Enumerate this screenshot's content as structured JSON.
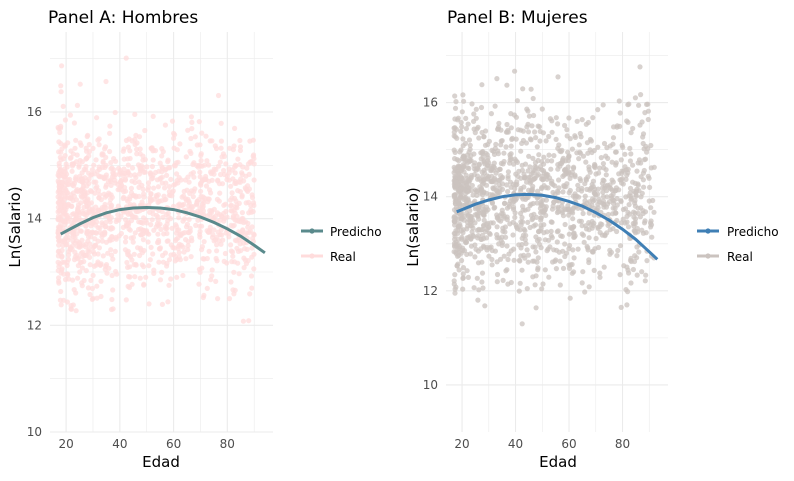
{
  "colors": {
    "grid": "#ebebeb",
    "axis_text": "#4d4d4d",
    "title_text": "#000000"
  },
  "chart_data": [
    {
      "type": "scatter",
      "title": "Panel A: Hombres",
      "xlabel": "Edad",
      "ylabel": "Ln(Salario)",
      "xlim": [
        14,
        97
      ],
      "ylim": [
        10,
        17.5
      ],
      "xticks": [
        20,
        40,
        60,
        80
      ],
      "yticks": [
        10,
        12,
        14,
        16
      ],
      "grid": true,
      "legend_position": "right",
      "series": [
        {
          "name": "Predicho",
          "kind": "line",
          "color": "#5a8a8c",
          "x": [
            18,
            25,
            30,
            35,
            40,
            45,
            50,
            55,
            60,
            65,
            70,
            75,
            80,
            85,
            90,
            94
          ],
          "y": [
            13.71,
            13.9,
            14.02,
            14.11,
            14.17,
            14.2,
            14.21,
            14.2,
            14.17,
            14.11,
            14.03,
            13.93,
            13.81,
            13.67,
            13.5,
            13.36
          ]
        },
        {
          "name": "Real",
          "kind": "points",
          "color": "#ffdcdc",
          "x_range": [
            17,
            90
          ],
          "center_y": 14.2,
          "spread": 0.75,
          "count": 1400,
          "seed": 11
        }
      ]
    },
    {
      "type": "scatter",
      "title": "Panel B: Mujeres",
      "xlabel": "Edad",
      "ylabel": "Ln(salario)",
      "xlim": [
        14,
        97
      ],
      "ylim": [
        9,
        17.5
      ],
      "xticks": [
        20,
        40,
        60,
        80
      ],
      "yticks": [
        10,
        12,
        14,
        16
      ],
      "grid": true,
      "legend_position": "right",
      "series": [
        {
          "name": "Predicho",
          "kind": "line",
          "color": "#3f7fb5",
          "x": [
            18,
            25,
            30,
            35,
            40,
            45,
            50,
            55,
            60,
            65,
            70,
            75,
            80,
            85,
            90,
            93
          ],
          "y": [
            13.68,
            13.84,
            13.93,
            14.0,
            14.04,
            14.05,
            14.03,
            13.98,
            13.9,
            13.8,
            13.66,
            13.5,
            13.31,
            13.09,
            12.83,
            12.67
          ]
        },
        {
          "name": "Real",
          "kind": "points",
          "color": "#cbc3bf",
          "x_range": [
            17,
            92
          ],
          "center_y": 14.0,
          "spread": 0.9,
          "count": 1400,
          "seed": 29
        }
      ]
    }
  ]
}
